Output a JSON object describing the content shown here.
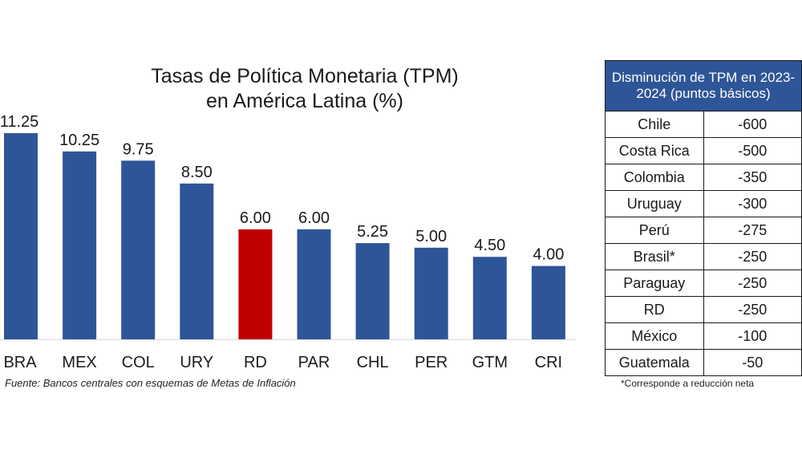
{
  "chart_data": {
    "type": "bar",
    "title": "Tasas de Política Monetaria (TPM)\nen América Latina (%)",
    "categories": [
      "BRA",
      "MEX",
      "COL",
      "URY",
      "RD",
      "PAR",
      "CHL",
      "PER",
      "GTM",
      "CRI"
    ],
    "values": [
      11.25,
      10.25,
      9.75,
      8.5,
      6.0,
      6.0,
      5.25,
      5.0,
      4.5,
      4.0
    ],
    "value_labels": [
      "11.25",
      "10.25",
      "9.75",
      "8.50",
      "6.00",
      "6.00",
      "5.25",
      "5.00",
      "4.50",
      "4.00"
    ],
    "highlight_category": "RD",
    "ylim": [
      0,
      11.25
    ],
    "grid": false,
    "xlabel": "",
    "ylabel": "",
    "colors": {
      "default": "#2e5597",
      "highlight": "#c00000"
    }
  },
  "source_note": "Fuente: Bancos centrales con esquemas de Metas de Inflación",
  "table": {
    "header": "Disminución de TPM en 2023-2024 (puntos básicos)",
    "rows": [
      {
        "country": "Chile",
        "value": "-600"
      },
      {
        "country": "Costa Rica",
        "value": "-500"
      },
      {
        "country": "Colombia",
        "value": "-350"
      },
      {
        "country": "Uruguay",
        "value": "-300"
      },
      {
        "country": "Perú",
        "value": "-275"
      },
      {
        "country": "Brasil*",
        "value": "-250"
      },
      {
        "country": "Paraguay",
        "value": "-250"
      },
      {
        "country": "RD",
        "value": "-250"
      },
      {
        "country": "México",
        "value": "-100"
      },
      {
        "country": "Guatemala",
        "value": "-50"
      }
    ],
    "footnote": "*Corresponde a reducción neta",
    "header_color": "#2e5597"
  }
}
